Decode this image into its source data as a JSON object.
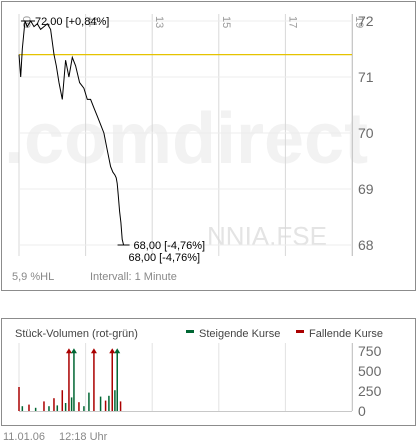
{
  "chart_data": [
    {
      "type": "line",
      "watermark": ".comdirect",
      "symbol": "NNIA.FSE",
      "x_tick_labels": [
        "09",
        "11",
        "13",
        "15",
        "17",
        "19"
      ],
      "y_ticks": [
        68,
        69,
        70,
        71,
        72
      ],
      "ylim": [
        67.8,
        72.2
      ],
      "reference_line": {
        "value": 71.4,
        "color": "#e5c300"
      },
      "series": [
        {
          "color": "#000000",
          "x": [
            9.0,
            9.05,
            9.1,
            9.18,
            9.25,
            9.35,
            9.45,
            9.55,
            9.65,
            9.75,
            9.85,
            9.95,
            10.05,
            10.12,
            10.2,
            10.3,
            10.4,
            10.5,
            10.6,
            10.7,
            10.82,
            10.95,
            11.05,
            11.15,
            11.25,
            11.35,
            11.45,
            11.55,
            11.65,
            11.75,
            11.82,
            11.88,
            11.92,
            11.95,
            11.98,
            12.02,
            12.06,
            12.1,
            12.14
          ],
          "y": [
            71.4,
            71.0,
            71.5,
            72.0,
            71.9,
            72.0,
            71.9,
            71.95,
            71.85,
            71.9,
            71.95,
            71.85,
            71.4,
            71.2,
            70.9,
            70.6,
            71.3,
            71.0,
            71.35,
            71.2,
            70.9,
            70.8,
            70.6,
            70.6,
            70.45,
            70.3,
            70.15,
            70.0,
            69.7,
            69.4,
            69.3,
            69.25,
            69.2,
            69.1,
            68.9,
            68.6,
            68.4,
            68.1,
            68.0
          ]
        }
      ],
      "annotations": {
        "high": "72,00 [+0,84%]",
        "low": "68,00 [-4,76%]",
        "last": "68,00 [-4,76%]"
      },
      "footer_left": "5,9 %HL",
      "footer_interval": "Intervall: 1 Minute"
    },
    {
      "type": "bar",
      "title": "Stück-Volumen (rot-grün)",
      "legend": [
        {
          "label": "Steigende Kurse",
          "color": "#006633"
        },
        {
          "label": "Fallende Kurse",
          "color": "#aa0000"
        }
      ],
      "y_ticks": [
        0,
        250,
        500,
        750
      ],
      "ylim": [
        0,
        800
      ],
      "bars": [
        {
          "x": 9.0,
          "value": 300,
          "color": "#aa0000"
        },
        {
          "x": 9.1,
          "value": 60,
          "color": "#006633"
        },
        {
          "x": 9.3,
          "value": 80,
          "color": "#aa0000"
        },
        {
          "x": 9.5,
          "value": 40,
          "color": "#006633"
        },
        {
          "x": 9.75,
          "value": 120,
          "color": "#aa0000"
        },
        {
          "x": 9.9,
          "value": 60,
          "color": "#006633"
        },
        {
          "x": 10.05,
          "value": 160,
          "color": "#aa0000"
        },
        {
          "x": 10.15,
          "value": 70,
          "color": "#006633"
        },
        {
          "x": 10.3,
          "value": 260,
          "color": "#aa0000"
        },
        {
          "x": 10.4,
          "value": 100,
          "color": "#006633"
        },
        {
          "x": 10.5,
          "value": 760,
          "color": "#aa0000"
        },
        {
          "x": 10.58,
          "value": 170,
          "color": "#006633"
        },
        {
          "x": 10.65,
          "value": 760,
          "color": "#006633"
        },
        {
          "x": 10.8,
          "value": 110,
          "color": "#aa0000"
        },
        {
          "x": 10.95,
          "value": 60,
          "color": "#006633"
        },
        {
          "x": 11.1,
          "value": 230,
          "color": "#006633"
        },
        {
          "x": 11.25,
          "value": 760,
          "color": "#aa0000"
        },
        {
          "x": 11.45,
          "value": 180,
          "color": "#006633"
        },
        {
          "x": 11.6,
          "value": 130,
          "color": "#aa0000"
        },
        {
          "x": 11.7,
          "value": 190,
          "color": "#006633"
        },
        {
          "x": 11.8,
          "value": 760,
          "color": "#aa0000"
        },
        {
          "x": 11.88,
          "value": 260,
          "color": "#006633"
        },
        {
          "x": 11.95,
          "value": 760,
          "color": "#006633"
        },
        {
          "x": 12.05,
          "value": 120,
          "color": "#aa0000"
        }
      ],
      "footer_date": "11.01.06",
      "footer_time": "12:18 Uhr"
    }
  ]
}
